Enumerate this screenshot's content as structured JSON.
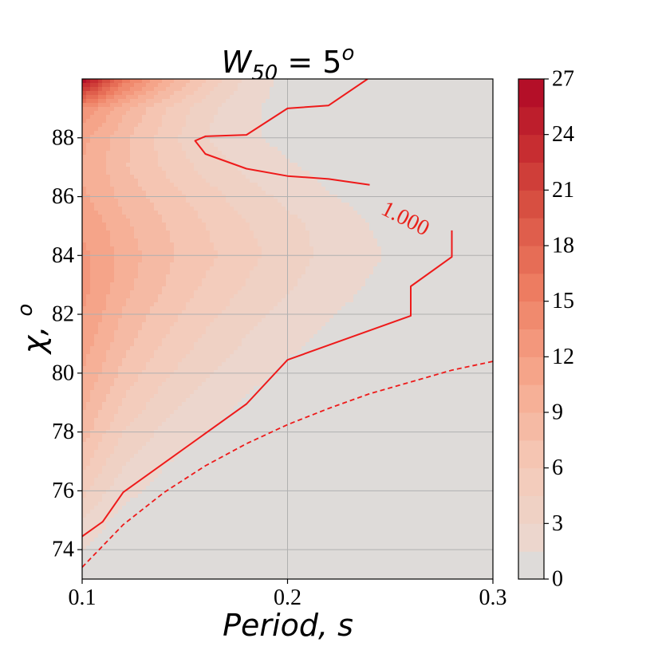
{
  "chart_data": {
    "type": "heatmap",
    "title": "W_50 = 5^o",
    "title_main": "W",
    "title_sub": "50",
    "title_rel": " = 5",
    "title_sup": "o",
    "xlabel": "Period, s",
    "ylabel_main": "χ,",
    "ylabel_sup": "o",
    "xlim": [
      0.1,
      0.3
    ],
    "ylim": [
      73,
      90
    ],
    "xticks": [
      0.1,
      0.2,
      0.3
    ],
    "xtick_labels": [
      "0.1",
      "0.2",
      "0.3"
    ],
    "yticks": [
      74,
      76,
      78,
      80,
      82,
      84,
      86,
      88
    ],
    "ytick_labels": [
      "74",
      "76",
      "78",
      "80",
      "82",
      "84",
      "86",
      "88"
    ],
    "grid": true,
    "colorbar": {
      "min": 0,
      "max": 27,
      "levels": 18,
      "ticks": [
        0,
        3,
        6,
        9,
        12,
        15,
        18,
        21,
        24,
        27
      ],
      "tick_labels": [
        "0",
        "3",
        "6",
        "9",
        "12",
        "15",
        "18",
        "21",
        "24",
        "27"
      ],
      "colormap": "Reds",
      "low_color": "#dedbd9",
      "high_color": "#b30f29"
    },
    "grid_x": [
      0.1,
      0.11,
      0.12,
      0.14,
      0.16,
      0.18,
      0.2,
      0.22,
      0.24,
      0.26,
      0.28,
      0.3
    ],
    "grid_y": [
      73,
      74,
      75,
      76,
      77,
      78,
      79,
      80,
      81,
      82,
      83,
      84,
      85,
      86,
      87,
      88,
      89,
      90
    ],
    "grid_values": [
      [
        0.5,
        0.3,
        0.2,
        0.1,
        0.0,
        0.0,
        0.0,
        0.0,
        0.0,
        0.0,
        0.0,
        0.0
      ],
      [
        1.5,
        0.8,
        0.4,
        0.2,
        0.1,
        0.0,
        0.0,
        0.0,
        0.0,
        0.0,
        0.0,
        0.0
      ],
      [
        3.0,
        1.8,
        1.0,
        0.4,
        0.2,
        0.1,
        0.0,
        0.0,
        0.0,
        0.0,
        0.0,
        0.0
      ],
      [
        5.0,
        3.3,
        2.0,
        0.9,
        0.4,
        0.2,
        0.1,
        0.0,
        0.0,
        0.0,
        0.0,
        0.0
      ],
      [
        6.8,
        4.8,
        3.2,
        1.6,
        0.8,
        0.4,
        0.2,
        0.1,
        0.0,
        0.0,
        0.0,
        0.0
      ],
      [
        8.3,
        6.3,
        4.5,
        2.6,
        1.5,
        0.8,
        0.4,
        0.2,
        0.1,
        0.0,
        0.0,
        0.0
      ],
      [
        9.5,
        7.6,
        5.8,
        3.7,
        2.3,
        1.3,
        0.7,
        0.4,
        0.2,
        0.1,
        0.0,
        0.0
      ],
      [
        10.5,
        8.8,
        7.0,
        4.8,
        3.2,
        2.0,
        1.2,
        0.7,
        0.4,
        0.2,
        0.1,
        0.0
      ],
      [
        11.3,
        9.7,
        8.0,
        5.8,
        4.1,
        2.8,
        1.8,
        1.1,
        0.6,
        0.3,
        0.2,
        0.1
      ],
      [
        12.0,
        10.5,
        8.8,
        6.7,
        5.0,
        3.6,
        2.5,
        1.6,
        1.0,
        0.6,
        0.3,
        0.1
      ],
      [
        12.6,
        11.2,
        9.6,
        7.5,
        5.8,
        4.4,
        3.2,
        2.2,
        1.4,
        0.9,
        0.5,
        0.2
      ],
      [
        12.5,
        11.4,
        9.9,
        7.9,
        6.4,
        5.0,
        3.7,
        2.6,
        1.7,
        1.1,
        0.7,
        0.3
      ],
      [
        11.6,
        10.7,
        9.4,
        7.6,
        6.0,
        4.6,
        3.5,
        2.4,
        1.5,
        0.9,
        0.5,
        0.2
      ],
      [
        10.8,
        9.8,
        8.5,
        6.8,
        5.2,
        3.7,
        2.6,
        1.6,
        1.0,
        0.5,
        0.3,
        0.1
      ],
      [
        10.3,
        9.2,
        7.7,
        5.8,
        4.0,
        2.6,
        1.7,
        1.0,
        0.5,
        0.3,
        0.1,
        0.0
      ],
      [
        11.0,
        9.6,
        7.9,
        5.3,
        3.0,
        1.8,
        1.0,
        0.5,
        0.3,
        0.1,
        0.0,
        0.0
      ],
      [
        13.5,
        11.6,
        9.4,
        6.2,
        3.5,
        1.8,
        0.9,
        0.4,
        0.2,
        0.1,
        0.0,
        0.0
      ],
      [
        27.0,
        21.5,
        16.5,
        10.5,
        6.0,
        2.6,
        1.0,
        0.4,
        0.2,
        0.1,
        0.0,
        0.0
      ]
    ],
    "contour_solid": {
      "label": "1.000",
      "label_x": 0.257,
      "label_y": 85.2,
      "label_angle_deg": 27,
      "segments": [
        [
          [
            0.24,
            86.4
          ],
          [
            0.22,
            86.6
          ],
          [
            0.2,
            86.7
          ],
          [
            0.18,
            86.95
          ],
          [
            0.16,
            87.45
          ],
          [
            0.155,
            87.9
          ],
          [
            0.16,
            88.05
          ],
          [
            0.18,
            88.1
          ],
          [
            0.2,
            89.0
          ],
          [
            0.22,
            89.1
          ],
          [
            0.239,
            90.0
          ]
        ],
        [
          [
            0.28,
            84.85
          ],
          [
            0.28,
            83.95
          ],
          [
            0.26,
            82.95
          ],
          [
            0.26,
            81.95
          ],
          [
            0.2,
            80.45
          ],
          [
            0.18,
            78.95
          ],
          [
            0.12,
            75.95
          ],
          [
            0.11,
            74.95
          ],
          [
            0.1,
            74.45
          ]
        ]
      ]
    },
    "contour_dashed": [
      [
        0.1,
        73.4
      ],
      [
        0.12,
        74.85
      ],
      [
        0.14,
        75.95
      ],
      [
        0.16,
        76.85
      ],
      [
        0.18,
        77.6
      ],
      [
        0.2,
        78.25
      ],
      [
        0.22,
        78.8
      ],
      [
        0.24,
        79.3
      ],
      [
        0.26,
        79.7
      ],
      [
        0.28,
        80.1
      ],
      [
        0.3,
        80.4
      ]
    ],
    "contour_color": "#ee1a1a"
  }
}
